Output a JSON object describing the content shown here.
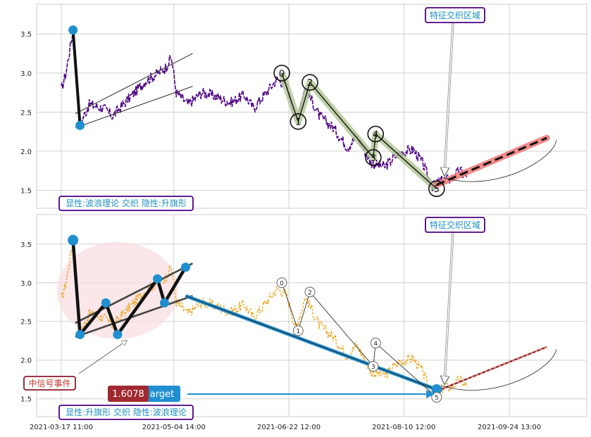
{
  "chart_data": [
    {
      "type": "line",
      "panel": "top",
      "ylim": [
        1.27,
        3.88
      ],
      "yticks": [
        1.5,
        2.0,
        2.5,
        3.0,
        3.5
      ],
      "ytick_labels": [
        "1.5",
        "2.0",
        "2.5",
        "3.0",
        "3.5"
      ],
      "grid": true,
      "colors": {
        "price": "#4b0082",
        "target": "#f08080",
        "band": "#b5c99a",
        "label_border": "#4b0082",
        "label_text": "#1f8fbf"
      },
      "series_anchors": [
        {
          "d": 0,
          "v": 2.78
        },
        {
          "d": 2,
          "v": 3.0
        },
        {
          "d": 5,
          "v": 3.55
        },
        {
          "d": 8,
          "v": 2.35
        },
        {
          "d": 12,
          "v": 2.6
        },
        {
          "d": 18,
          "v": 2.55
        },
        {
          "d": 22,
          "v": 2.45
        },
        {
          "d": 28,
          "v": 2.65
        },
        {
          "d": 36,
          "v": 2.9
        },
        {
          "d": 44,
          "v": 3.05
        },
        {
          "d": 47,
          "v": 3.2
        },
        {
          "d": 49,
          "v": 2.75
        },
        {
          "d": 54,
          "v": 2.6
        },
        {
          "d": 60,
          "v": 2.75
        },
        {
          "d": 66,
          "v": 2.7
        },
        {
          "d": 72,
          "v": 2.62
        },
        {
          "d": 78,
          "v": 2.72
        },
        {
          "d": 82,
          "v": 2.55
        },
        {
          "d": 86,
          "v": 2.7
        },
        {
          "d": 92,
          "v": 2.92
        },
        {
          "d": 96,
          "v": 2.85
        },
        {
          "d": 100,
          "v": 2.4
        },
        {
          "d": 104,
          "v": 2.82
        },
        {
          "d": 110,
          "v": 2.45
        },
        {
          "d": 116,
          "v": 2.3
        },
        {
          "d": 122,
          "v": 2.05
        },
        {
          "d": 126,
          "v": 2.2
        },
        {
          "d": 132,
          "v": 1.85
        },
        {
          "d": 138,
          "v": 1.8
        },
        {
          "d": 144,
          "v": 1.98
        },
        {
          "d": 150,
          "v": 2.02
        },
        {
          "d": 154,
          "v": 1.85
        },
        {
          "d": 158,
          "v": 1.55
        },
        {
          "d": 162,
          "v": 1.62
        },
        {
          "d": 166,
          "v": 1.65
        },
        {
          "d": 170,
          "v": 1.75
        },
        {
          "d": 173,
          "v": 1.65
        }
      ],
      "wave_points": [
        {
          "d": 94,
          "v": 3.0,
          "label": "0"
        },
        {
          "d": 101,
          "v": 2.38,
          "label": "1"
        },
        {
          "d": 106,
          "v": 2.88,
          "label": "2"
        },
        {
          "d": 133,
          "v": 1.92,
          "label": "3"
        },
        {
          "d": 134,
          "v": 2.22,
          "label": "4"
        },
        {
          "d": 160,
          "v": 1.52,
          "label": "5"
        }
      ],
      "flag_points": [
        {
          "d": 5,
          "v": 3.55
        },
        {
          "d": 8,
          "v": 2.33
        }
      ],
      "channel": [
        {
          "from": {
            "d": 6,
            "v": 2.48
          },
          "to": {
            "d": 56,
            "v": 3.25
          }
        },
        {
          "from": {
            "d": 6,
            "v": 2.3
          },
          "to": {
            "d": 56,
            "v": 2.83
          }
        }
      ],
      "target_line": {
        "from": {
          "d": 160,
          "v": 1.57
        },
        "to": {
          "d": 207,
          "v": 2.17
        }
      },
      "annotation": "特征交织区域",
      "label": "显性:波浪理论 交织 隐性:升旗形"
    },
    {
      "type": "line",
      "panel": "bottom",
      "ylim": [
        1.27,
        3.88
      ],
      "yticks": [
        1.5,
        2.0,
        2.5,
        3.0,
        3.5
      ],
      "ytick_labels": [
        "1.5",
        "2.0",
        "2.5",
        "3.0",
        "3.5"
      ],
      "grid": true,
      "colors": {
        "price": "#e8a825",
        "flag": "#1f8fcf",
        "trend": "#1f8fcf",
        "target": "#f08080",
        "ellipse": "#f9dde2",
        "signal_border": "#8b1a2b",
        "signal_text": "#c0392b",
        "price_box": "#a0282f",
        "target_box": "#1f8fcf"
      },
      "flag_points": [
        {
          "d": 5,
          "v": 3.55
        },
        {
          "d": 8,
          "v": 2.33
        },
        {
          "d": 19,
          "v": 2.74
        },
        {
          "d": 24,
          "v": 2.33
        },
        {
          "d": 41,
          "v": 3.05
        },
        {
          "d": 44,
          "v": 2.74
        },
        {
          "d": 53,
          "v": 3.2
        }
      ],
      "channel": [
        {
          "from": {
            "d": 6,
            "v": 2.48
          },
          "to": {
            "d": 56,
            "v": 3.25
          }
        },
        {
          "from": {
            "d": 6,
            "v": 2.3
          },
          "to": {
            "d": 56,
            "v": 2.83
          }
        }
      ],
      "trend_line": {
        "from": {
          "d": 53,
          "v": 2.83
        },
        "to": {
          "d": 160,
          "v": 1.62
        }
      },
      "wave_points": [
        {
          "d": 94,
          "v": 3.0,
          "label": "0"
        },
        {
          "d": 101,
          "v": 2.38,
          "label": "1"
        },
        {
          "d": 106,
          "v": 2.88,
          "label": "2"
        },
        {
          "d": 133,
          "v": 1.92,
          "label": "3"
        },
        {
          "d": 134,
          "v": 2.22,
          "label": "4"
        },
        {
          "d": 160,
          "v": 1.52,
          "label": "5"
        }
      ],
      "target_line": {
        "from": {
          "d": 160,
          "v": 1.6
        },
        "to": {
          "d": 207,
          "v": 2.17
        }
      },
      "annotation": "特征交织区域",
      "signal": "中信号事件",
      "price_value": "1.6078",
      "target_text": "arget",
      "label": "显性:升旗形 交织 隐性:波浪理论"
    }
  ],
  "x_axis": {
    "start": "2021-03-17 11:00",
    "ticks": [
      {
        "label": "2021-03-17 11:00",
        "d": 0
      },
      {
        "label": "2021-05-04 14:00",
        "d": 48
      },
      {
        "label": "2021-06-22 12:00",
        "d": 97
      },
      {
        "label": "2021-08-10 12:00",
        "d": 146
      },
      {
        "label": "2021-09-24 13:00",
        "d": 191
      }
    ],
    "xlim_days": [
      -10.5,
      224
    ]
  }
}
